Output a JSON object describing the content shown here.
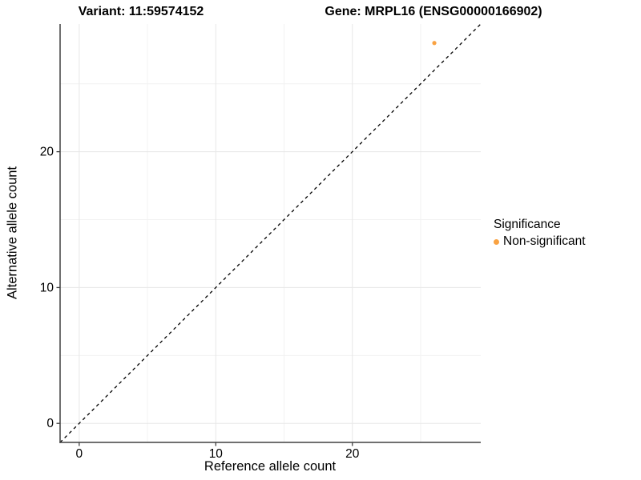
{
  "titles": {
    "left": "Variant: 11:59574152",
    "right": "Gene: MRPL16 (ENSG00000166902)"
  },
  "chart_data": {
    "type": "scatter",
    "xlabel": "Reference allele count",
    "ylabel": "Alternative allele count",
    "xlim": [
      -1.4,
      29.4
    ],
    "ylim": [
      -1.4,
      29.4
    ],
    "xticks": [
      0,
      10,
      20
    ],
    "yticks": [
      0,
      10,
      20
    ],
    "minor_ticks": [
      5,
      15,
      25
    ],
    "grid": true,
    "points": [
      {
        "x": 26,
        "y": 28,
        "series": "Non-significant"
      }
    ],
    "abline": {
      "slope": 1,
      "intercept": 0,
      "style": "dashed"
    },
    "legend": {
      "title": "Significance",
      "position": "right",
      "items": [
        {
          "label": "Non-significant",
          "color": "#F9A242"
        }
      ]
    },
    "colors": {
      "point": "#F9A242",
      "grid_major": "#E7E7E7",
      "grid_minor": "#F2F2F2",
      "axis_line": "#404040",
      "tick": "#404040",
      "text": "#000000",
      "abline": "#000000",
      "background": "#FFFFFF"
    }
  }
}
